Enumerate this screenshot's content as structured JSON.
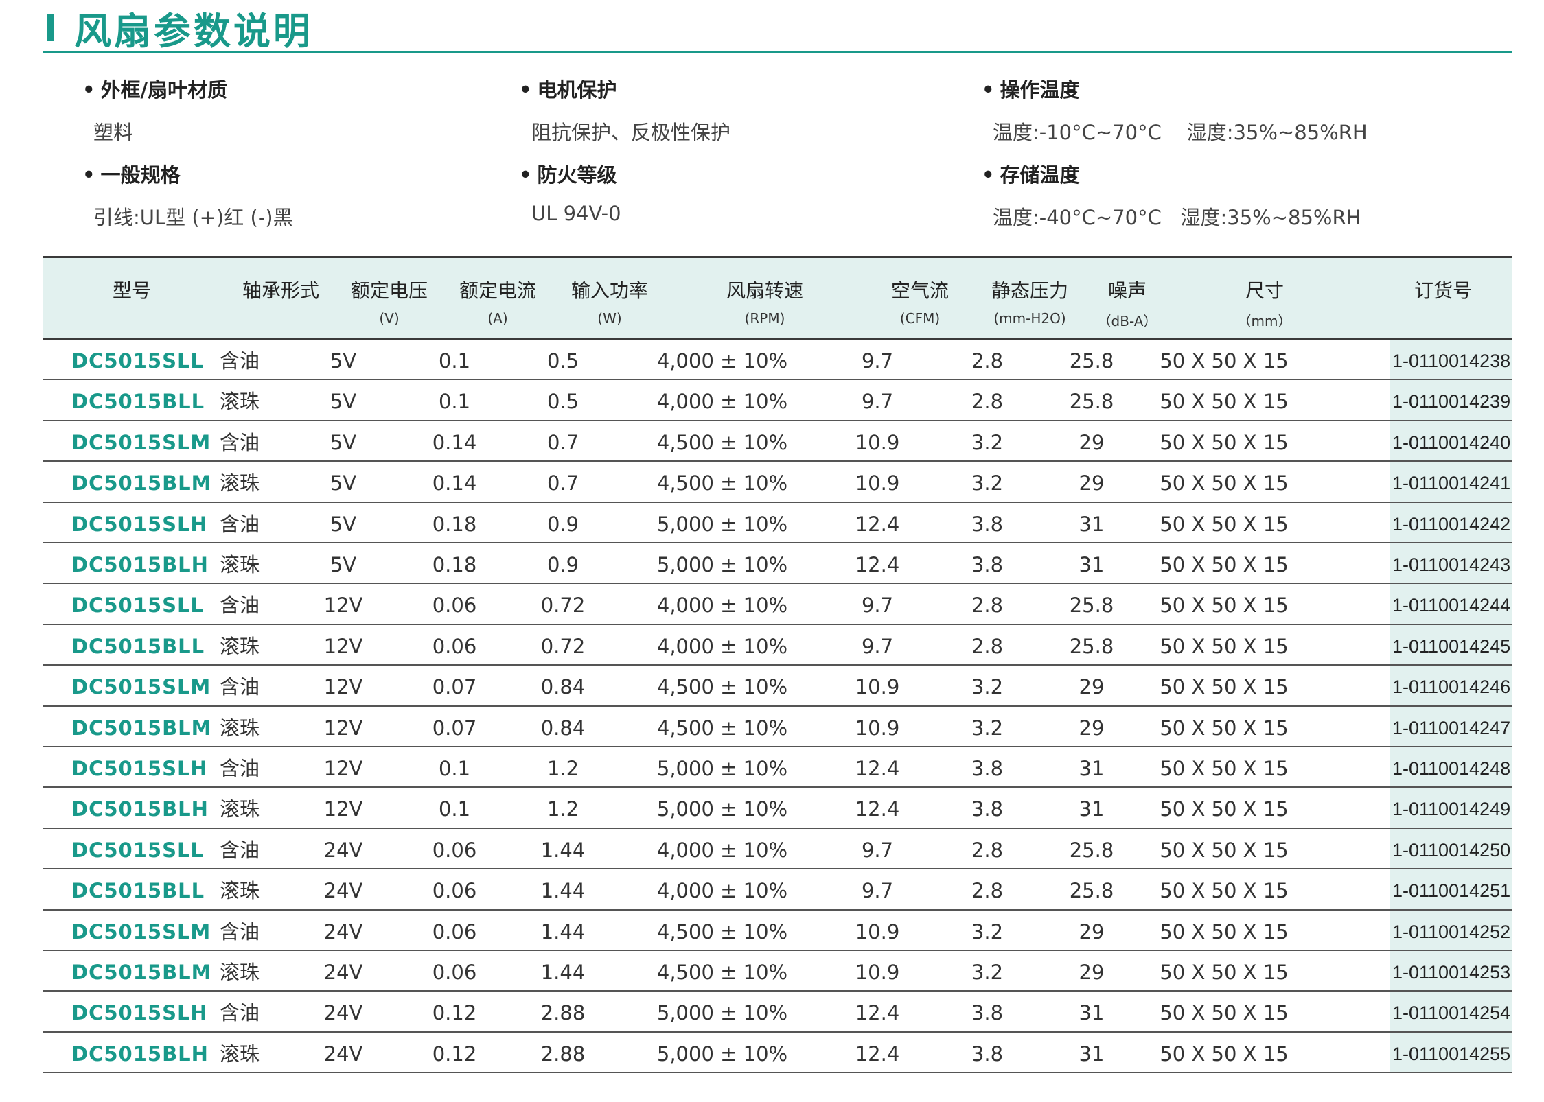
{
  "title": "风扇参数说明",
  "specs": [
    {
      "label": "外框/扇叶材质",
      "value": "塑料"
    },
    {
      "label": "电机保护",
      "value": "阻抗保护、反极性保护"
    },
    {
      "label": "操作温度",
      "value": "温度:-10°C~70°C    湿度:35%~85%RH"
    },
    {
      "label": "一般规格",
      "value": "引线:UL型  (+)红  (-)黑"
    },
    {
      "label": "防火等级",
      "value": "UL 94V-0"
    },
    {
      "label": "存储温度",
      "value": "温度:-40°C~70°C   湿度:35%~85%RH"
    }
  ],
  "columns": [
    {
      "name": "型号",
      "unit": ""
    },
    {
      "name": "轴承形式",
      "unit": ""
    },
    {
      "name": "额定电压",
      "unit": "(V)"
    },
    {
      "name": "额定电流",
      "unit": "(A)"
    },
    {
      "name": "输入功率",
      "unit": "(W)"
    },
    {
      "name": "风扇转速",
      "unit": "(RPM)"
    },
    {
      "name": "空气流",
      "unit": "(CFM)"
    },
    {
      "name": "静态压力",
      "unit": "(mm-H2O)"
    },
    {
      "name": "噪声",
      "unit": "（dB-A）"
    },
    {
      "name": "尺寸",
      "unit": "（mm）"
    },
    {
      "name": "订货号",
      "unit": ""
    }
  ],
  "rows": [
    [
      "DC5015SLL",
      "含油",
      "5V",
      "0.1",
      "0.5",
      "4,000 ± 10%",
      "9.7",
      "2.8",
      "25.8",
      "50 X 50 X 15",
      "1-0110014238"
    ],
    [
      "DC5015BLL",
      "滚珠",
      "5V",
      "0.1",
      "0.5",
      "4,000 ± 10%",
      "9.7",
      "2.8",
      "25.8",
      "50 X 50 X 15",
      "1-0110014239"
    ],
    [
      "DC5015SLM",
      "含油",
      "5V",
      "0.14",
      "0.7",
      "4,500 ± 10%",
      "10.9",
      "3.2",
      "29",
      "50 X 50 X 15",
      "1-0110014240"
    ],
    [
      "DC5015BLM",
      "滚珠",
      "5V",
      "0.14",
      "0.7",
      "4,500 ± 10%",
      "10.9",
      "3.2",
      "29",
      "50 X 50 X 15",
      "1-0110014241"
    ],
    [
      "DC5015SLH",
      "含油",
      "5V",
      "0.18",
      "0.9",
      "5,000 ± 10%",
      "12.4",
      "3.8",
      "31",
      "50 X 50 X 15",
      "1-0110014242"
    ],
    [
      "DC5015BLH",
      "滚珠",
      "5V",
      "0.18",
      "0.9",
      "5,000 ± 10%",
      "12.4",
      "3.8",
      "31",
      "50 X 50 X 15",
      "1-0110014243"
    ],
    [
      "DC5015SLL",
      "含油",
      "12V",
      "0.06",
      "0.72",
      "4,000 ± 10%",
      "9.7",
      "2.8",
      "25.8",
      "50 X 50 X 15",
      "1-0110014244"
    ],
    [
      "DC5015BLL",
      "滚珠",
      "12V",
      "0.06",
      "0.72",
      "4,000 ± 10%",
      "9.7",
      "2.8",
      "25.8",
      "50 X 50 X 15",
      "1-0110014245"
    ],
    [
      "DC5015SLM",
      "含油",
      "12V",
      "0.07",
      "0.84",
      "4,500 ± 10%",
      "10.9",
      "3.2",
      "29",
      "50 X 50 X 15",
      "1-0110014246"
    ],
    [
      "DC5015BLM",
      "滚珠",
      "12V",
      "0.07",
      "0.84",
      "4,500 ± 10%",
      "10.9",
      "3.2",
      "29",
      "50 X 50 X 15",
      "1-0110014247"
    ],
    [
      "DC5015SLH",
      "含油",
      "12V",
      "0.1",
      "1.2",
      "5,000 ± 10%",
      "12.4",
      "3.8",
      "31",
      "50 X 50 X 15",
      "1-0110014248"
    ],
    [
      "DC5015BLH",
      "滚珠",
      "12V",
      "0.1",
      "1.2",
      "5,000 ± 10%",
      "12.4",
      "3.8",
      "31",
      "50 X 50 X 15",
      "1-0110014249"
    ],
    [
      "DC5015SLL",
      "含油",
      "24V",
      "0.06",
      "1.44",
      "4,000 ± 10%",
      "9.7",
      "2.8",
      "25.8",
      "50 X 50 X 15",
      "1-0110014250"
    ],
    [
      "DC5015BLL",
      "滚珠",
      "24V",
      "0.06",
      "1.44",
      "4,000 ± 10%",
      "9.7",
      "2.8",
      "25.8",
      "50 X 50 X 15",
      "1-0110014251"
    ],
    [
      "DC5015SLM",
      "含油",
      "24V",
      "0.06",
      "1.44",
      "4,500 ± 10%",
      "10.9",
      "3.2",
      "29",
      "50 X 50 X 15",
      "1-0110014252"
    ],
    [
      "DC5015BLM",
      "滚珠",
      "24V",
      "0.06",
      "1.44",
      "4,500 ± 10%",
      "10.9",
      "3.2",
      "29",
      "50 X 50 X 15",
      "1-0110014253"
    ],
    [
      "DC5015SLH",
      "含油",
      "24V",
      "0.12",
      "2.88",
      "5,000 ± 10%",
      "12.4",
      "3.8",
      "31",
      "50 X 50 X 15",
      "1-0110014254"
    ],
    [
      "DC5015BLH",
      "滚珠",
      "24V",
      "0.12",
      "2.88",
      "5,000 ± 10%",
      "12.4",
      "3.8",
      "31",
      "50 X 50 X 15",
      "1-0110014255"
    ]
  ],
  "colors": {
    "accent": "#19998a",
    "header_bg": "#e2f1ef"
  }
}
